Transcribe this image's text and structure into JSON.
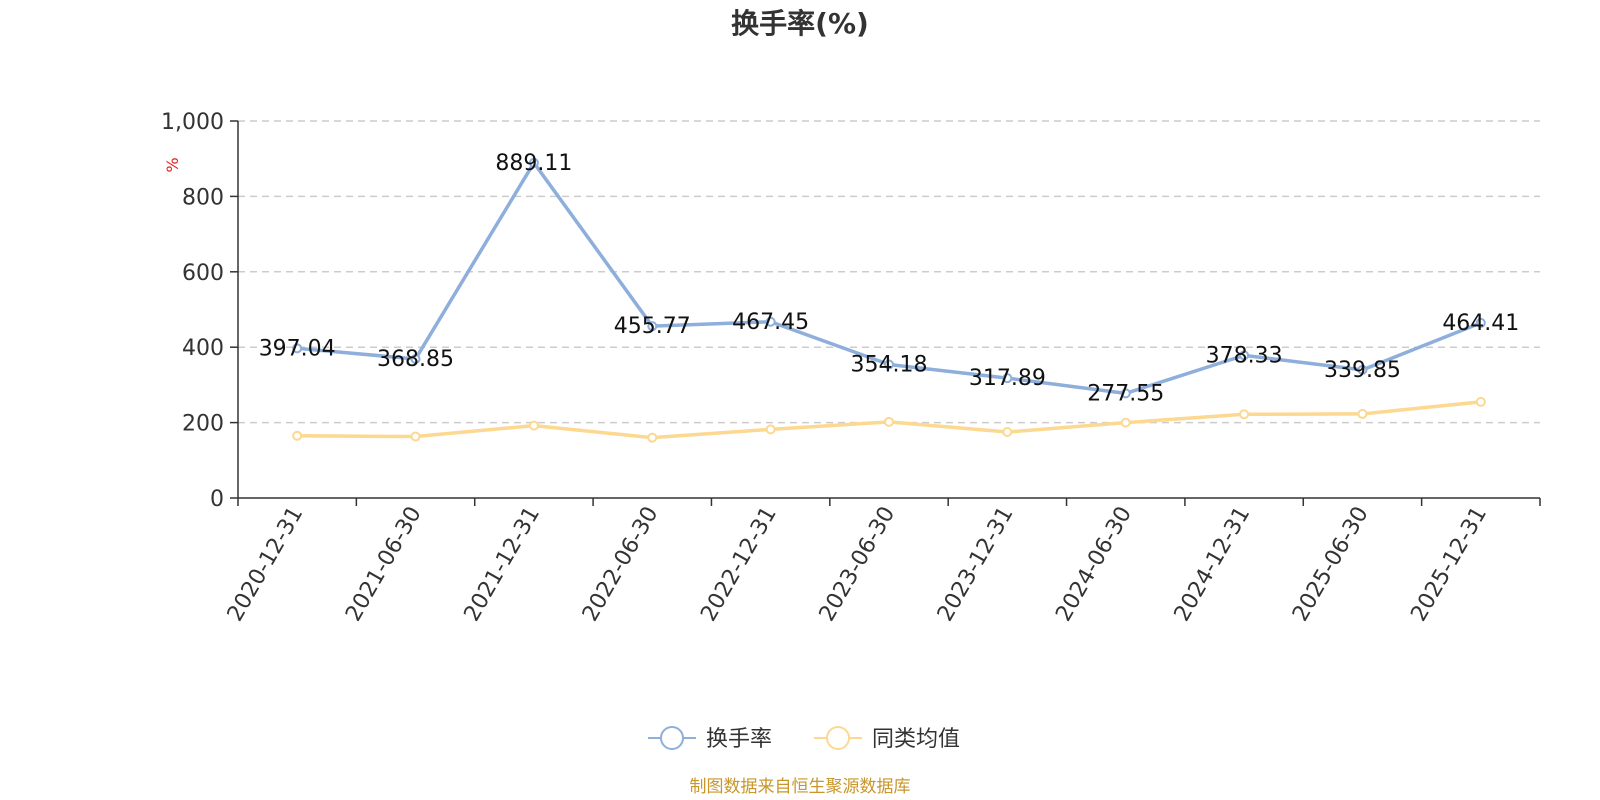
{
  "chart_data": {
    "type": "line",
    "title": "换手率(%)",
    "ylabel": "%",
    "ylim": [
      0,
      1000
    ],
    "yticks": [
      0,
      200,
      400,
      600,
      800,
      1000
    ],
    "ytick_labels": [
      "0",
      "200",
      "400",
      "600",
      "800",
      "1,000"
    ],
    "categories": [
      "2020-12-31",
      "2021-06-30",
      "2021-12-31",
      "2022-06-30",
      "2022-12-31",
      "2023-06-30",
      "2023-12-31",
      "2024-06-30",
      "2024-12-31",
      "2025-06-30",
      "2025-12-31"
    ],
    "series": [
      {
        "name": "换手率",
        "color": "#8eaedb",
        "values": [
          397.04,
          368.85,
          889.11,
          455.77,
          467.45,
          354.18,
          317.89,
          277.55,
          378.33,
          339.85,
          464.41
        ],
        "labels": [
          "397.04",
          "368.85",
          "889.11",
          "455.77",
          "467.45",
          "354.18",
          "317.89",
          "277.55",
          "378.33",
          "339.85",
          "464.41"
        ]
      },
      {
        "name": "同类均值",
        "color": "#fcd891",
        "values": [
          165,
          163,
          192,
          160,
          182,
          202,
          175,
          200,
          222,
          223,
          255
        ]
      }
    ],
    "grid": true,
    "legend_position": "bottom-center",
    "source": "制图数据来自恒生聚源数据库",
    "source_color": "#c8962a",
    "unit_color": "#e02020"
  }
}
